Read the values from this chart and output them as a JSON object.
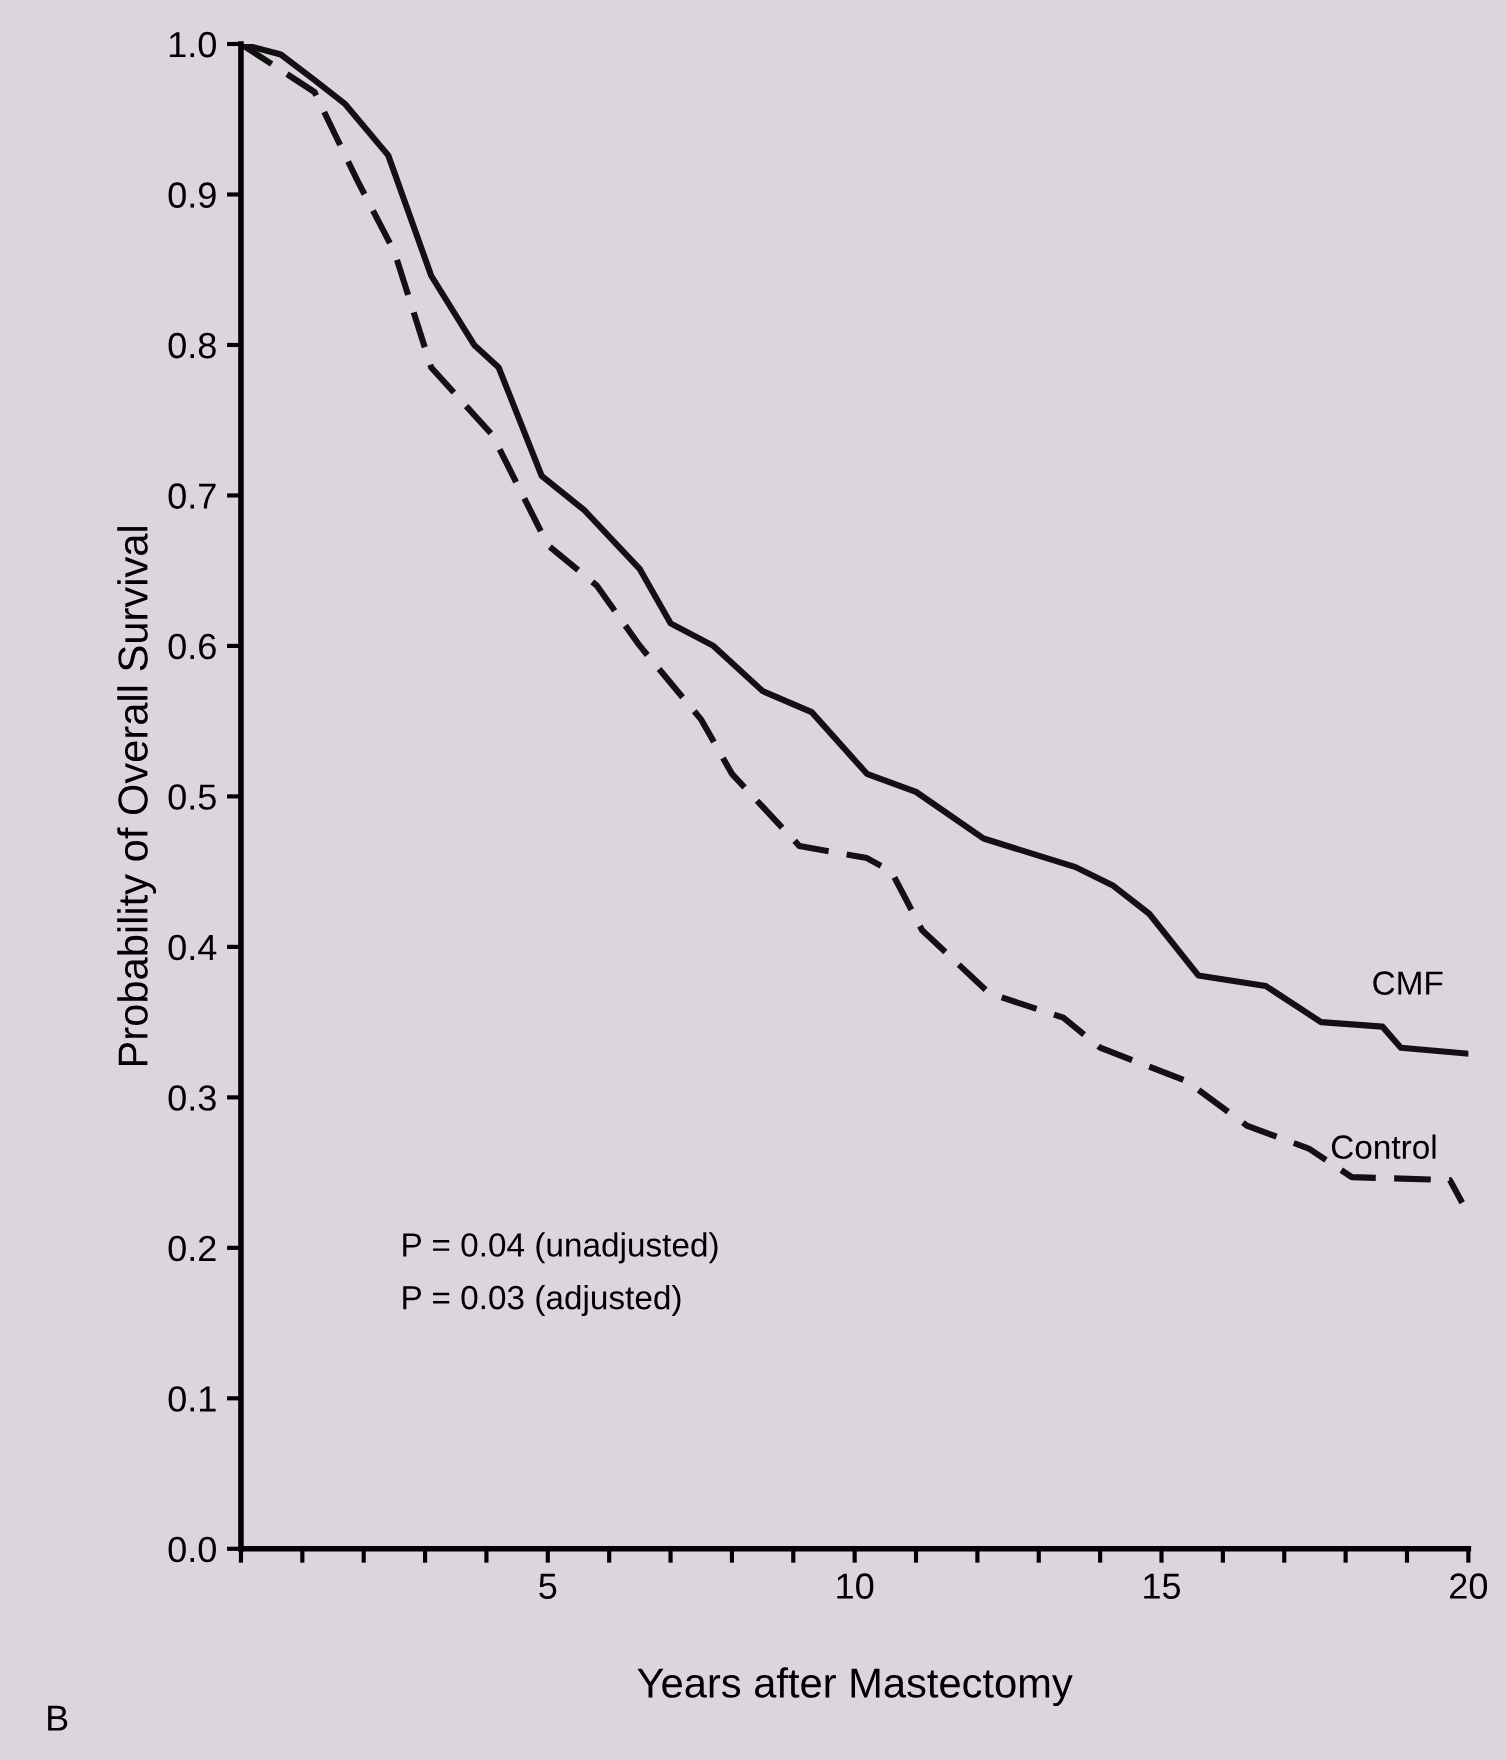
{
  "chart_data": {
    "type": "line",
    "xlabel": "Years after Mastectomy",
    "ylabel": "Probability of Overall Survival",
    "annotations": [
      "P = 0.04 (unadjusted)",
      "P = 0.03 (adjusted)",
      "B"
    ],
    "series": [
      {
        "name": "CMF",
        "color": "#111111",
        "line_style": "solid",
        "x": [
          0,
          0.65,
          1.2,
          1.7,
          2.4,
          3.1,
          3.8,
          4.2,
          4.9,
          5.6,
          6.5,
          7.0,
          7.7,
          8.5,
          9.3,
          10.2,
          11.0,
          12.1,
          13.6,
          14.2,
          14.8,
          15.6,
          16.7,
          17.6,
          18.6,
          18.9,
          20
        ],
        "values": [
          1.0,
          0.993,
          0.976,
          0.96,
          0.926,
          0.846,
          0.8,
          0.785,
          0.713,
          0.69,
          0.651,
          0.615,
          0.6,
          0.57,
          0.556,
          0.515,
          0.503,
          0.472,
          0.453,
          0.441,
          0.422,
          0.381,
          0.374,
          0.35,
          0.347,
          0.333,
          0.329
        ]
      },
      {
        "name": "Control",
        "color": "#111111",
        "line_style": "dashed",
        "x": [
          0,
          1.2,
          1.9,
          2.5,
          3.1,
          4.1,
          5.0,
          5.8,
          6.5,
          7.5,
          8.0,
          9.1,
          10.2,
          10.6,
          11.1,
          12.2,
          13.4,
          14.0,
          15.4,
          16.4,
          17.4,
          18.1,
          19.7,
          19.9
        ],
        "values": [
          1.0,
          0.968,
          0.909,
          0.862,
          0.785,
          0.74,
          0.667,
          0.64,
          0.6,
          0.551,
          0.515,
          0.467,
          0.459,
          0.45,
          0.411,
          0.369,
          0.353,
          0.333,
          0.311,
          0.281,
          0.266,
          0.247,
          0.245,
          0.23
        ]
      }
    ],
    "xlim": [
      0,
      20
    ],
    "xticks": [
      {
        "value": 0,
        "label": null
      },
      {
        "value": 1,
        "label": null
      },
      {
        "value": 2,
        "label": null
      },
      {
        "value": 3,
        "label": null
      },
      {
        "value": 4,
        "label": null
      },
      5,
      {
        "value": 6,
        "label": null
      },
      {
        "value": 7,
        "label": null
      },
      {
        "value": 8,
        "label": null
      },
      {
        "value": 9,
        "label": null
      },
      10,
      {
        "value": 11,
        "label": null
      },
      {
        "value": 12,
        "label": null
      },
      {
        "value": 13,
        "label": null
      },
      {
        "value": 14,
        "label": null
      },
      15,
      {
        "value": 16,
        "label": null
      },
      {
        "value": 17,
        "label": null
      },
      {
        "value": 18,
        "label": null
      },
      {
        "value": 19,
        "label": null
      },
      20
    ],
    "ylim": [
      0,
      1
    ],
    "yticks": [
      {
        "value": 0,
        "label": "0.0"
      },
      {
        "value": 0.1,
        "label": "0.1"
      },
      {
        "value": 0.2,
        "label": "0.2"
      },
      {
        "value": 0.3,
        "label": "0.3"
      },
      {
        "value": 0.4,
        "label": "0.4"
      },
      {
        "value": 0.5,
        "label": "0.5"
      },
      {
        "value": 0.6,
        "label": "0.6"
      },
      {
        "value": 0.7,
        "label": "0.7"
      },
      {
        "value": 0.8,
        "label": "0.8"
      },
      {
        "value": 0.9,
        "label": "0.9"
      },
      {
        "value": 1.0,
        "label": "1.0"
      }
    ],
    "grid": false,
    "legend": false
  }
}
